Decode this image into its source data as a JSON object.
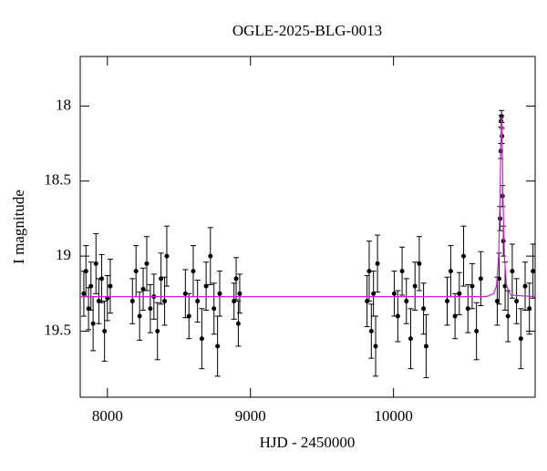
{
  "chart_data": {
    "type": "scatter",
    "title": "OGLE-2025-BLG-0013",
    "x_label": "HJD - 2450000",
    "y_label": "I magnitude",
    "y_inverted": true,
    "xlim": [
      7810,
      10990
    ],
    "ylim": [
      17.67,
      19.94
    ],
    "xticks": [
      8000,
      9000,
      10000
    ],
    "yticks": [
      18,
      18.5,
      19,
      19.5
    ],
    "color": "#000000",
    "x": [
      7835,
      7850,
      7868,
      7885,
      7900,
      7920,
      7940,
      7960,
      7980,
      8000,
      8020,
      8175,
      8200,
      8225,
      8250,
      8275,
      8300,
      8325,
      8350,
      8375,
      8400,
      8415,
      8545,
      8570,
      8600,
      8630,
      8660,
      8690,
      8720,
      8745,
      8770,
      8785,
      8885,
      8900,
      8915,
      8925,
      9815,
      9830,
      9845,
      9860,
      9875,
      9888,
      10005,
      10030,
      10060,
      10090,
      10120,
      10150,
      10180,
      10210,
      10228,
      10375,
      10400,
      10430,
      10460,
      10490,
      10520,
      10550,
      10580,
      10610,
      10725,
      10738,
      10745,
      10750,
      10752,
      10755,
      10758,
      10762,
      10768,
      10780,
      10800,
      10830,
      10860,
      10890,
      10920,
      10950,
      10975
    ],
    "values": [
      19.25,
      19.1,
      19.35,
      19.2,
      19.45,
      19.05,
      19.3,
      19.15,
      19.5,
      19.28,
      19.2,
      19.3,
      19.1,
      19.4,
      19.22,
      19.05,
      19.35,
      19.27,
      19.5,
      19.15,
      19.3,
      19.0,
      19.25,
      19.4,
      19.1,
      19.3,
      19.55,
      19.2,
      19.0,
      19.35,
      19.6,
      19.25,
      19.3,
      19.15,
      19.45,
      19.25,
      19.3,
      19.1,
      19.5,
      19.25,
      19.6,
      19.05,
      19.25,
      19.4,
      19.1,
      19.3,
      19.55,
      19.2,
      19.05,
      19.35,
      19.6,
      19.3,
      19.1,
      19.4,
      19.25,
      19.0,
      19.35,
      19.2,
      19.5,
      19.15,
      19.3,
      19.15,
      18.75,
      18.3,
      18.1,
      18.07,
      18.2,
      18.6,
      18.9,
      19.2,
      19.4,
      19.1,
      19.3,
      19.55,
      19.2,
      19.35,
      19.1
    ],
    "errors": [
      0.15,
      0.17,
      0.14,
      0.16,
      0.18,
      0.2,
      0.15,
      0.16,
      0.2,
      0.15,
      0.18,
      0.15,
      0.17,
      0.16,
      0.14,
      0.18,
      0.16,
      0.15,
      0.19,
      0.17,
      0.16,
      0.2,
      0.16,
      0.15,
      0.17,
      0.14,
      0.2,
      0.16,
      0.19,
      0.17,
      0.2,
      0.15,
      0.12,
      0.14,
      0.15,
      0.13,
      0.17,
      0.2,
      0.18,
      0.15,
      0.2,
      0.19,
      0.15,
      0.17,
      0.16,
      0.15,
      0.2,
      0.16,
      0.18,
      0.17,
      0.21,
      0.16,
      0.17,
      0.15,
      0.14,
      0.2,
      0.16,
      0.15,
      0.19,
      0.18,
      0.16,
      0.17,
      0.08,
      0.05,
      0.04,
      0.04,
      0.05,
      0.07,
      0.1,
      0.16,
      0.17,
      0.18,
      0.15,
      0.2,
      0.16,
      0.17,
      0.18
    ],
    "model": {
      "color": "#d020d0",
      "x": [
        7810,
        10650,
        10700,
        10720,
        10735,
        10745,
        10750,
        10755,
        10760,
        10765,
        10775,
        10790,
        10820,
        10990
      ],
      "values": [
        19.27,
        19.27,
        19.25,
        19.2,
        19.0,
        18.6,
        18.25,
        18.07,
        18.25,
        18.6,
        19.0,
        19.2,
        19.26,
        19.27
      ]
    }
  }
}
